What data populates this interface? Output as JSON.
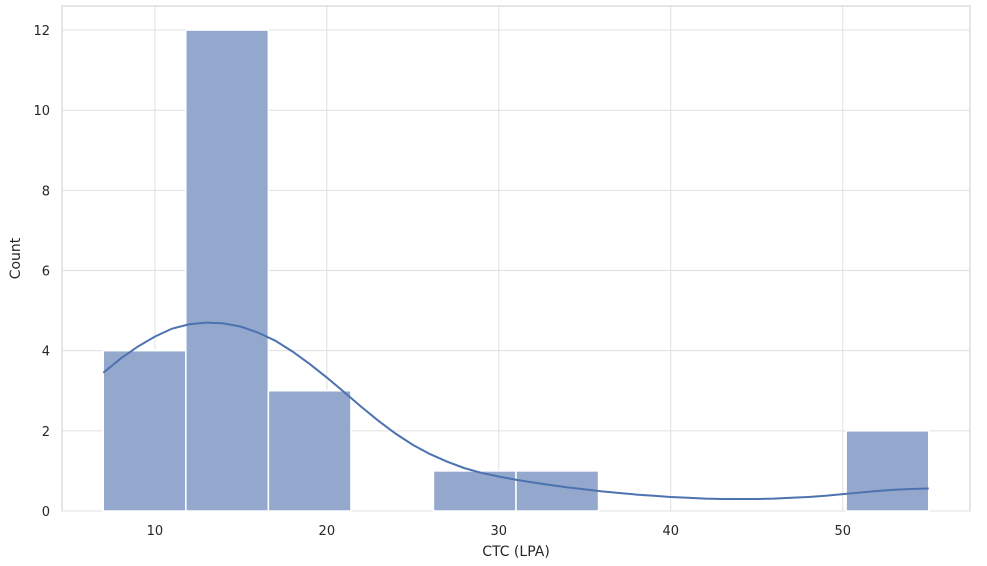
{
  "chart_data": {
    "type": "bar",
    "subtype": "histogram-with-kde",
    "xlabel": "CTC (LPA)",
    "ylabel": "Count",
    "xlim": [
      4.6,
      57.4
    ],
    "ylim": [
      0,
      12.6
    ],
    "xticks": [
      10,
      20,
      30,
      40,
      50
    ],
    "yticks": [
      0,
      2,
      4,
      6,
      8,
      10,
      12
    ],
    "grid": true,
    "bar_color": "#94a8cd",
    "bar_edge_color": "#ffffff",
    "line_color": "#4c72b0",
    "grid_color": "#e0e0e0",
    "bins": [
      {
        "x0": 7.0,
        "x1": 11.8,
        "count": 4
      },
      {
        "x0": 11.8,
        "x1": 16.6,
        "count": 12
      },
      {
        "x0": 16.6,
        "x1": 21.4,
        "count": 3
      },
      {
        "x0": 21.4,
        "x1": 26.2,
        "count": 0
      },
      {
        "x0": 26.2,
        "x1": 31.0,
        "count": 1
      },
      {
        "x0": 31.0,
        "x1": 35.8,
        "count": 1
      },
      {
        "x0": 35.8,
        "x1": 40.6,
        "count": 0
      },
      {
        "x0": 40.6,
        "x1": 45.4,
        "count": 0
      },
      {
        "x0": 45.4,
        "x1": 50.2,
        "count": 0
      },
      {
        "x0": 50.2,
        "x1": 55.0,
        "count": 2
      }
    ],
    "kde": {
      "x": [
        7,
        8,
        9,
        10,
        11,
        12,
        13,
        14,
        15,
        16,
        17,
        18,
        19,
        20,
        21,
        22,
        23,
        24,
        25,
        26,
        27,
        28,
        29,
        30,
        31,
        32,
        33,
        34,
        35,
        36,
        37,
        38,
        39,
        40,
        41,
        42,
        43,
        44,
        45,
        46,
        47,
        48,
        49,
        50,
        51,
        52,
        53,
        54,
        55
      ],
      "y": [
        3.45,
        3.8,
        4.1,
        4.35,
        4.55,
        4.66,
        4.7,
        4.68,
        4.6,
        4.45,
        4.25,
        3.98,
        3.67,
        3.33,
        2.97,
        2.6,
        2.25,
        1.93,
        1.65,
        1.42,
        1.23,
        1.07,
        0.95,
        0.86,
        0.78,
        0.71,
        0.65,
        0.59,
        0.54,
        0.49,
        0.45,
        0.41,
        0.38,
        0.35,
        0.33,
        0.31,
        0.3,
        0.3,
        0.3,
        0.31,
        0.33,
        0.35,
        0.38,
        0.42,
        0.46,
        0.5,
        0.53,
        0.55,
        0.56
      ]
    }
  }
}
